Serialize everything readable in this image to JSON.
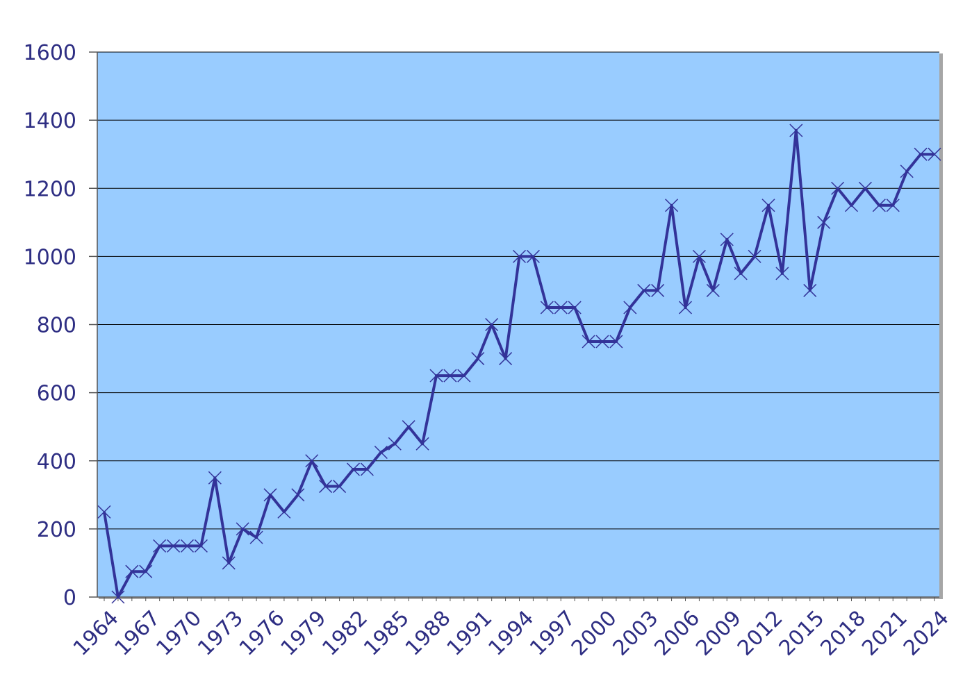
{
  "chart_data": {
    "type": "line",
    "title": "",
    "xlabel": "",
    "ylabel": "",
    "ylim": [
      0,
      1600
    ],
    "yticks": [
      "0",
      "200",
      "400",
      "600",
      "800",
      "1000",
      "1200",
      "1400",
      "1600"
    ],
    "xticks": [
      "1964",
      "1967",
      "1970",
      "1973",
      "1976",
      "1979",
      "1982",
      "1985",
      "1988",
      "1991",
      "1994",
      "1997",
      "2000",
      "2003",
      "2006",
      "2009",
      "2012",
      "2015",
      "2018",
      "2021",
      "2024"
    ],
    "grid": "horizontal",
    "legend": "none",
    "marker": "x",
    "colors": {
      "plot_background": "#99ccff",
      "line": "#333399",
      "text": "#2e2e83",
      "grid": "#000000",
      "plot_border": "#a6a6a6"
    },
    "series": [
      {
        "x": [
          1964,
          1965,
          1966,
          1967,
          1968,
          1969,
          1970,
          1971,
          1972,
          1973,
          1974,
          1975,
          1976,
          1977,
          1978,
          1979,
          1980,
          1981,
          1982,
          1983,
          1984,
          1985,
          1986,
          1987,
          1988,
          1989,
          1990,
          1991,
          1992,
          1993,
          1994,
          1995,
          1996,
          1997,
          1998,
          1999,
          2000,
          2001,
          2002,
          2003,
          2004,
          2005,
          2006,
          2007,
          2008,
          2009,
          2010,
          2011,
          2012,
          2013,
          2014,
          2015,
          2016,
          2017,
          2018,
          2019,
          2020,
          2021,
          2022,
          2023,
          2024
        ],
        "values": [
          250,
          0,
          75,
          75,
          150,
          150,
          150,
          150,
          350,
          100,
          200,
          175,
          300,
          250,
          300,
          400,
          325,
          325,
          375,
          375,
          425,
          450,
          500,
          450,
          650,
          650,
          650,
          700,
          800,
          700,
          1000,
          1000,
          850,
          850,
          850,
          750,
          750,
          750,
          850,
          900,
          900,
          1150,
          850,
          1000,
          900,
          1050,
          950,
          1000,
          1150,
          950,
          1370,
          900,
          1100,
          1200,
          1150,
          1200,
          1150,
          1150,
          1250,
          1300,
          1300
        ]
      }
    ]
  }
}
